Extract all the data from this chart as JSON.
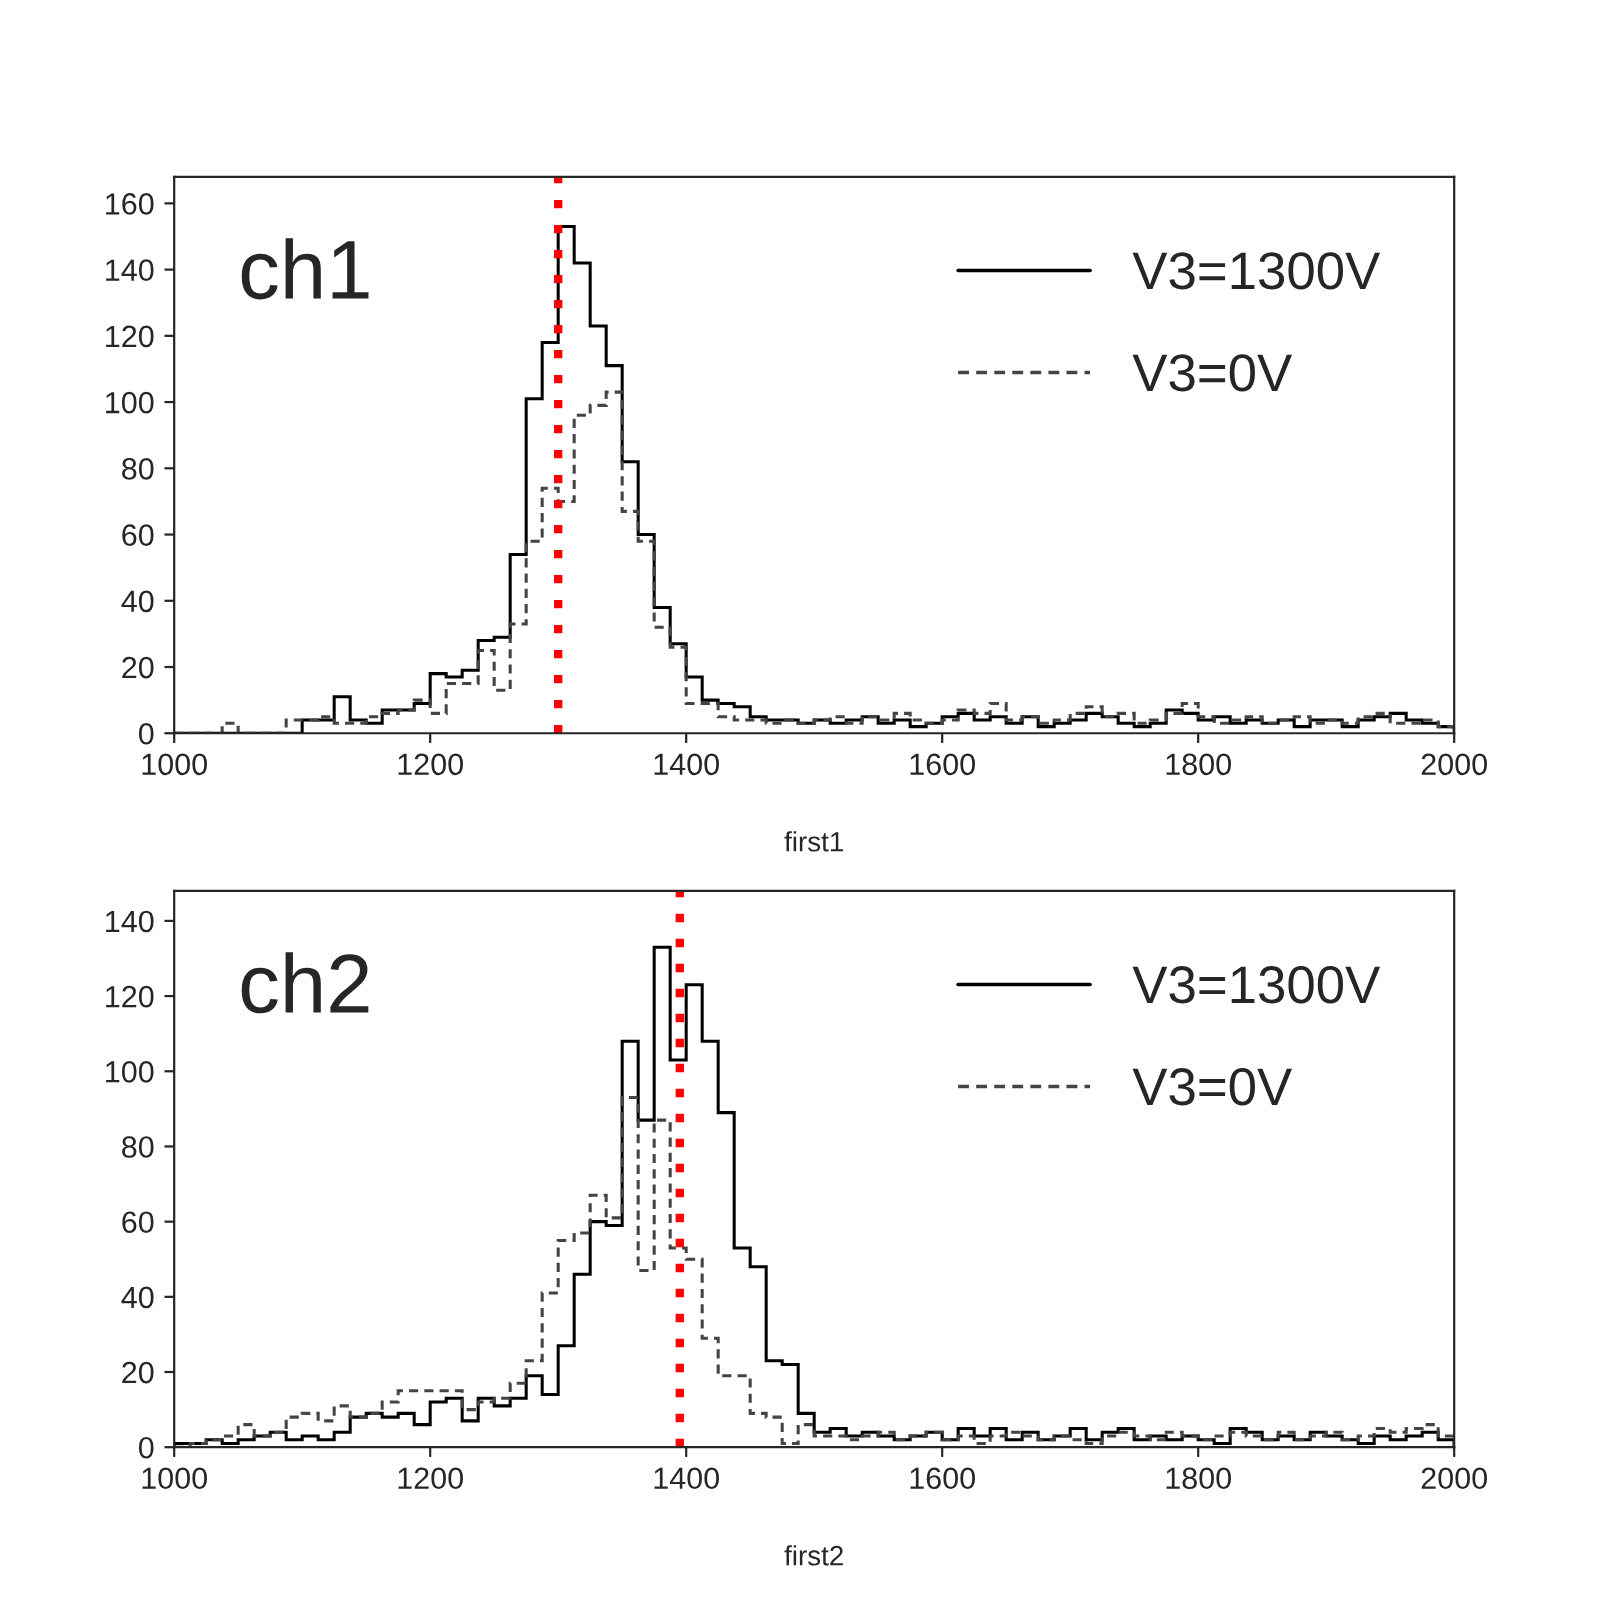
{
  "chart_data": [
    {
      "type": "histogram",
      "xlabel": "first1",
      "annotations": [
        "ch1"
      ],
      "bins": [
        1000,
        1012.5,
        1025,
        1037.5,
        1050,
        1062.5,
        1075,
        1087.5,
        1100,
        1112.5,
        1125,
        1137.5,
        1150,
        1162.5,
        1175,
        1187.5,
        1200,
        1212.5,
        1225,
        1237.5,
        1250,
        1262.5,
        1275,
        1287.5,
        1300,
        1312.5,
        1325,
        1337.5,
        1350,
        1362.5,
        1375,
        1387.5,
        1400,
        1412.5,
        1425,
        1437.5,
        1450,
        1462.5,
        1475,
        1487.5,
        1500,
        1512.5,
        1525,
        1537.5,
        1550,
        1562.5,
        1575,
        1587.5,
        1600,
        1612.5,
        1625,
        1637.5,
        1650,
        1662.5,
        1675,
        1687.5,
        1700,
        1712.5,
        1725,
        1737.5,
        1750,
        1762.5,
        1775,
        1787.5,
        1800,
        1812.5,
        1825,
        1837.5,
        1850,
        1862.5,
        1875,
        1887.5,
        1900,
        1912.5,
        1925,
        1937.5,
        1950,
        1962.5,
        1975,
        1987.5,
        2000
      ],
      "series": [
        {
          "name": "V3=1300V",
          "color": "#000000",
          "line_style": "solid",
          "values": [
            0,
            0,
            0,
            0,
            0,
            0,
            0,
            0,
            4,
            4,
            11,
            4,
            3,
            7,
            7,
            9,
            18,
            17,
            19,
            28,
            29,
            54,
            101,
            118,
            153,
            142,
            123,
            111,
            82,
            60,
            38,
            27,
            17,
            10,
            9,
            8,
            5,
            4,
            4,
            3,
            4,
            3,
            4,
            5,
            3,
            4,
            2,
            3,
            5,
            6,
            4,
            5,
            3,
            5,
            2,
            3,
            4,
            6,
            5,
            3,
            2,
            3,
            7,
            6,
            4,
            5,
            3,
            4,
            3,
            4,
            2,
            4,
            4,
            2,
            4,
            5,
            6,
            4,
            3,
            2
          ]
        },
        {
          "name": "V3=0V",
          "color": "#444444",
          "line_style": "dashed",
          "values": [
            0,
            0,
            0,
            3,
            0,
            0,
            0,
            4,
            4,
            5,
            3,
            3,
            5,
            6,
            7,
            10,
            6,
            15,
            15,
            25,
            13,
            33,
            58,
            74,
            70,
            96,
            99,
            103,
            67,
            58,
            32,
            26,
            9,
            9,
            5,
            4,
            4,
            3,
            4,
            3,
            4,
            5,
            3,
            5,
            4,
            6,
            4,
            3,
            4,
            7,
            6,
            9,
            4,
            5,
            3,
            4,
            6,
            8,
            5,
            6,
            3,
            4,
            6,
            9,
            5,
            3,
            4,
            5,
            3,
            4,
            5,
            3,
            4,
            3,
            5,
            6,
            3,
            3,
            4,
            2
          ]
        }
      ],
      "ref_lines": [
        {
          "axis": "x",
          "value": 1300,
          "color": "#ff0000",
          "line_style": "dotted"
        }
      ],
      "xlim": [
        1000,
        2000
      ],
      "xticks": [
        1000,
        1200,
        1400,
        1600,
        1800,
        2000
      ],
      "ylim": [
        0,
        168
      ],
      "yticks": [
        0,
        20,
        40,
        60,
        80,
        100,
        120,
        140,
        160
      ],
      "legend": "top right",
      "grid": false
    },
    {
      "type": "histogram",
      "xlabel": "first2",
      "annotations": [
        "ch2"
      ],
      "bins": [
        1000,
        1012.5,
        1025,
        1037.5,
        1050,
        1062.5,
        1075,
        1087.5,
        1100,
        1112.5,
        1125,
        1137.5,
        1150,
        1162.5,
        1175,
        1187.5,
        1200,
        1212.5,
        1225,
        1237.5,
        1250,
        1262.5,
        1275,
        1287.5,
        1300,
        1312.5,
        1325,
        1337.5,
        1350,
        1362.5,
        1375,
        1387.5,
        1400,
        1412.5,
        1425,
        1437.5,
        1450,
        1462.5,
        1475,
        1487.5,
        1500,
        1512.5,
        1525,
        1537.5,
        1550,
        1562.5,
        1575,
        1587.5,
        1600,
        1612.5,
        1625,
        1637.5,
        1650,
        1662.5,
        1675,
        1687.5,
        1700,
        1712.5,
        1725,
        1737.5,
        1750,
        1762.5,
        1775,
        1787.5,
        1800,
        1812.5,
        1825,
        1837.5,
        1850,
        1862.5,
        1875,
        1887.5,
        1900,
        1912.5,
        1925,
        1937.5,
        1950,
        1962.5,
        1975,
        1987.5,
        2000
      ],
      "series": [
        {
          "name": "V3=1300V",
          "color": "#000000",
          "line_style": "solid",
          "values": [
            1,
            1,
            2,
            1,
            2,
            3,
            4,
            2,
            3,
            2,
            4,
            8,
            9,
            8,
            9,
            6,
            12,
            13,
            7,
            13,
            11,
            13,
            19,
            14,
            27,
            46,
            60,
            59,
            108,
            87,
            133,
            103,
            123,
            108,
            89,
            53,
            48,
            23,
            22,
            9,
            4,
            5,
            3,
            4,
            3,
            2,
            3,
            4,
            2,
            5,
            3,
            5,
            2,
            4,
            2,
            3,
            5,
            2,
            4,
            5,
            2,
            3,
            2,
            3,
            2,
            1,
            5,
            4,
            2,
            3,
            2,
            4,
            3,
            2,
            1,
            3,
            2,
            3,
            4,
            2
          ]
        },
        {
          "name": "V3=0V",
          "color": "#444444",
          "line_style": "dashed",
          "values": [
            0,
            1,
            2,
            3,
            6,
            3,
            4,
            8,
            9,
            7,
            11,
            8,
            9,
            12,
            15,
            15,
            15,
            15,
            10,
            12,
            13,
            17,
            23,
            41,
            55,
            57,
            67,
            61,
            93,
            47,
            87,
            53,
            50,
            29,
            19,
            19,
            9,
            8,
            1,
            6,
            3,
            3,
            2,
            3,
            4,
            2,
            3,
            4,
            2,
            3,
            1,
            3,
            4,
            3,
            2,
            3,
            2,
            1,
            3,
            4,
            3,
            2,
            4,
            3,
            2,
            3,
            4,
            3,
            2,
            4,
            2,
            3,
            4,
            2,
            3,
            5,
            4,
            5,
            6,
            3
          ]
        }
      ],
      "ref_lines": [
        {
          "axis": "x",
          "value": 1395,
          "color": "#ff0000",
          "line_style": "dotted"
        }
      ],
      "xlim": [
        1000,
        2000
      ],
      "xticks": [
        1000,
        1200,
        1400,
        1600,
        1800,
        2000
      ],
      "ylim": [
        0,
        148
      ],
      "yticks": [
        0,
        20,
        40,
        60,
        80,
        100,
        120,
        140
      ],
      "legend": "top right",
      "grid": false
    }
  ]
}
